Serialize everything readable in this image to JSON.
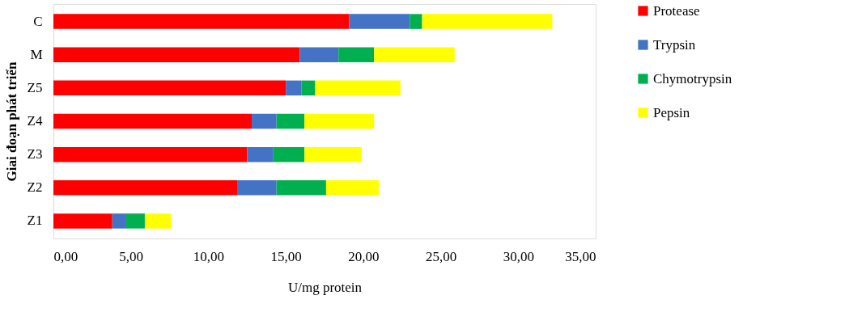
{
  "chart_data": {
    "type": "bar",
    "orientation": "horizontal",
    "stacked": true,
    "ylabel": "Giai đoạn phát triển",
    "xlabel": "U/mg protein",
    "categories": [
      "C",
      "M",
      "Z5",
      "Z4",
      "Z3",
      "Z2",
      "Z1"
    ],
    "series": [
      {
        "name": "Protease",
        "color": "#ff0000",
        "values": [
          19.1,
          15.9,
          15.0,
          12.8,
          12.5,
          11.9,
          3.8
        ]
      },
      {
        "name": "Trypsin",
        "color": "#4472c4",
        "values": [
          3.9,
          2.5,
          1.0,
          1.6,
          1.7,
          2.5,
          0.9
        ]
      },
      {
        "name": "Chymotrypsin",
        "color": "#00b050",
        "values": [
          0.8,
          2.3,
          0.9,
          1.8,
          2.0,
          3.2,
          1.2
        ]
      },
      {
        "name": "Pepsin",
        "color": "#ffff00",
        "values": [
          8.4,
          5.2,
          5.5,
          4.5,
          3.7,
          3.4,
          1.7
        ]
      }
    ],
    "xlim": [
      0,
      35
    ],
    "xticks": [
      {
        "value": 0,
        "label": "0,00"
      },
      {
        "value": 5,
        "label": "5,00"
      },
      {
        "value": 10,
        "label": "10,00"
      },
      {
        "value": 15,
        "label": "15,00"
      },
      {
        "value": 20,
        "label": "20,00"
      },
      {
        "value": 25,
        "label": "25,00"
      },
      {
        "value": 30,
        "label": "30,00"
      },
      {
        "value": 35,
        "label": "35,00"
      }
    ],
    "grid": false,
    "legend": "right"
  }
}
